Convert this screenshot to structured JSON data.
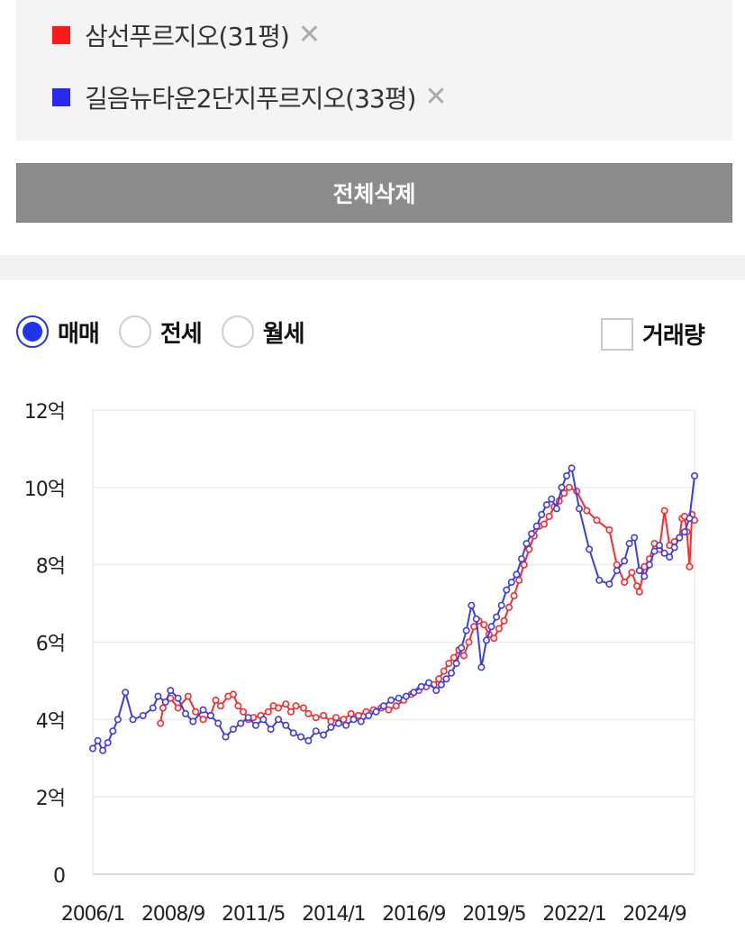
{
  "selection": {
    "items": [
      {
        "label": "삼선푸르지오(31평)",
        "color": "#ff1a1a"
      },
      {
        "label": "길음뉴타운2단지푸르지오(33평)",
        "color": "#2a2aee"
      }
    ],
    "remove_symbol": "✕",
    "delete_all_label": "전체삭제"
  },
  "controls": {
    "radios": [
      {
        "label": "매매",
        "checked": true
      },
      {
        "label": "전세",
        "checked": false
      },
      {
        "label": "월세",
        "checked": false
      }
    ],
    "volume_label": "거래량",
    "volume_checked": false
  },
  "chart_data": {
    "type": "line",
    "y_unit": "억",
    "ylim": [
      0,
      12
    ],
    "y_ticks": [
      {
        "value": 0,
        "label": "0"
      },
      {
        "value": 2,
        "label": "2억"
      },
      {
        "value": 4,
        "label": "4억"
      },
      {
        "value": 6,
        "label": "6억"
      },
      {
        "value": 8,
        "label": "8억"
      },
      {
        "value": 10,
        "label": "10억"
      },
      {
        "value": 12,
        "label": "12억"
      }
    ],
    "xlim": [
      "2006/1",
      "2026/1"
    ],
    "x_ticks": [
      "2006/1",
      "2008/9",
      "2011/5",
      "2014/1",
      "2016/9",
      "2019/5",
      "2022/1",
      "2024/9"
    ],
    "grid": true,
    "series": [
      {
        "name": "삼선푸르지오(31평)",
        "color": "#ff2a2a",
        "points": [
          [
            "2008/4",
            3.9
          ],
          [
            "2008/5",
            4.3
          ],
          [
            "2008/8",
            4.55
          ],
          [
            "2008/11",
            4.3
          ],
          [
            "2009/3",
            4.6
          ],
          [
            "2009/6",
            4.2
          ],
          [
            "2009/9",
            4.0
          ],
          [
            "2009/12",
            4.1
          ],
          [
            "2010/2",
            4.5
          ],
          [
            "2010/4",
            4.35
          ],
          [
            "2010/7",
            4.6
          ],
          [
            "2010/9",
            4.65
          ],
          [
            "2010/11",
            4.35
          ],
          [
            "2011/1",
            4.2
          ],
          [
            "2011/3",
            4.0
          ],
          [
            "2011/5",
            4.05
          ],
          [
            "2011/8",
            4.1
          ],
          [
            "2011/11",
            4.2
          ],
          [
            "2012/1",
            4.35
          ],
          [
            "2012/3",
            4.3
          ],
          [
            "2012/6",
            4.4
          ],
          [
            "2012/8",
            4.2
          ],
          [
            "2012/10",
            4.35
          ],
          [
            "2013/1",
            4.3
          ],
          [
            "2013/3",
            4.15
          ],
          [
            "2013/6",
            4.05
          ],
          [
            "2013/9",
            4.1
          ],
          [
            "2013/12",
            3.95
          ],
          [
            "2014/2",
            4.05
          ],
          [
            "2014/5",
            4.0
          ],
          [
            "2014/8",
            4.15
          ],
          [
            "2014/11",
            4.1
          ],
          [
            "2015/2",
            4.2
          ],
          [
            "2015/5",
            4.25
          ],
          [
            "2015/8",
            4.3
          ],
          [
            "2015/11",
            4.25
          ],
          [
            "2016/2",
            4.35
          ],
          [
            "2016/5",
            4.5
          ],
          [
            "2016/8",
            4.65
          ],
          [
            "2016/11",
            4.75
          ],
          [
            "2017/2",
            4.85
          ],
          [
            "2017/5",
            4.9
          ],
          [
            "2017/7",
            5.05
          ],
          [
            "2017/9",
            5.25
          ],
          [
            "2017/11",
            5.45
          ],
          [
            "2018/1",
            5.6
          ],
          [
            "2018/3",
            5.8
          ],
          [
            "2018/5",
            5.65
          ],
          [
            "2018/7",
            6.0
          ],
          [
            "2018/9",
            6.4
          ],
          [
            "2018/11",
            6.55
          ],
          [
            "2019/1",
            6.45
          ],
          [
            "2019/3",
            6.2
          ],
          [
            "2019/5",
            6.1
          ],
          [
            "2019/7",
            6.35
          ],
          [
            "2019/9",
            6.55
          ],
          [
            "2019/11",
            6.9
          ],
          [
            "2020/1",
            7.2
          ],
          [
            "2020/3",
            7.6
          ],
          [
            "2020/5",
            8.0
          ],
          [
            "2020/7",
            8.4
          ],
          [
            "2020/9",
            8.75
          ],
          [
            "2020/11",
            9.0
          ],
          [
            "2021/1",
            9.05
          ],
          [
            "2021/3",
            9.25
          ],
          [
            "2021/5",
            9.5
          ],
          [
            "2021/7",
            9.65
          ],
          [
            "2021/9",
            9.85
          ],
          [
            "2021/11",
            10.0
          ],
          [
            "2022/2",
            9.9
          ],
          [
            "2022/6",
            9.4
          ],
          [
            "2022/10",
            9.15
          ],
          [
            "2023/3",
            8.9
          ],
          [
            "2023/6",
            8.0
          ],
          [
            "2023/9",
            7.55
          ],
          [
            "2023/12",
            7.8
          ],
          [
            "2024/2",
            7.45
          ],
          [
            "2024/3",
            7.3
          ],
          [
            "2024/5",
            7.95
          ],
          [
            "2024/7",
            8.15
          ],
          [
            "2024/9",
            8.55
          ],
          [
            "2024/11",
            8.4
          ],
          [
            "2025/1",
            9.4
          ],
          [
            "2025/3",
            8.5
          ],
          [
            "2025/5",
            8.6
          ],
          [
            "2025/7",
            8.7
          ],
          [
            "2025/8",
            9.2
          ],
          [
            "2025/9",
            9.25
          ],
          [
            "2025/10",
            8.85
          ],
          [
            "2025/11",
            7.95
          ],
          [
            "2025/12",
            9.3
          ],
          [
            "2026/1",
            9.15
          ]
        ]
      },
      {
        "name": "길음뉴타운2단지푸르지오(33평)",
        "color": "#3d3de8",
        "points": [
          [
            "2006/1",
            3.25
          ],
          [
            "2006/3",
            3.45
          ],
          [
            "2006/5",
            3.2
          ],
          [
            "2006/7",
            3.4
          ],
          [
            "2006/9",
            3.7
          ],
          [
            "2006/11",
            4.0
          ],
          [
            "2007/2",
            4.7
          ],
          [
            "2007/5",
            4.0
          ],
          [
            "2007/9",
            4.1
          ],
          [
            "2008/1",
            4.3
          ],
          [
            "2008/3",
            4.6
          ],
          [
            "2008/6",
            4.45
          ],
          [
            "2008/8",
            4.75
          ],
          [
            "2008/11",
            4.55
          ],
          [
            "2009/2",
            4.15
          ],
          [
            "2009/5",
            3.95
          ],
          [
            "2009/9",
            4.25
          ],
          [
            "2009/12",
            4.1
          ],
          [
            "2010/3",
            3.9
          ],
          [
            "2010/6",
            3.55
          ],
          [
            "2010/9",
            3.75
          ],
          [
            "2010/12",
            3.9
          ],
          [
            "2011/3",
            4.05
          ],
          [
            "2011/6",
            3.85
          ],
          [
            "2011/9",
            4.0
          ],
          [
            "2011/12",
            3.75
          ],
          [
            "2012/3",
            4.0
          ],
          [
            "2012/6",
            3.85
          ],
          [
            "2012/9",
            3.65
          ],
          [
            "2012/12",
            3.55
          ],
          [
            "2013/3",
            3.45
          ],
          [
            "2013/6",
            3.7
          ],
          [
            "2013/9",
            3.6
          ],
          [
            "2013/12",
            3.8
          ],
          [
            "2014/3",
            3.9
          ],
          [
            "2014/6",
            3.85
          ],
          [
            "2014/9",
            4.0
          ],
          [
            "2014/12",
            3.95
          ],
          [
            "2015/3",
            4.1
          ],
          [
            "2015/6",
            4.2
          ],
          [
            "2015/9",
            4.35
          ],
          [
            "2015/12",
            4.5
          ],
          [
            "2016/3",
            4.55
          ],
          [
            "2016/6",
            4.6
          ],
          [
            "2016/9",
            4.7
          ],
          [
            "2016/12",
            4.85
          ],
          [
            "2017/3",
            4.95
          ],
          [
            "2017/6",
            4.75
          ],
          [
            "2017/8",
            4.9
          ],
          [
            "2017/10",
            5.05
          ],
          [
            "2017/12",
            5.2
          ],
          [
            "2018/2",
            5.45
          ],
          [
            "2018/4",
            5.85
          ],
          [
            "2018/6",
            6.3
          ],
          [
            "2018/8",
            6.95
          ],
          [
            "2018/10",
            6.6
          ],
          [
            "2018/12",
            5.35
          ],
          [
            "2019/2",
            6.05
          ],
          [
            "2019/4",
            6.4
          ],
          [
            "2019/6",
            6.65
          ],
          [
            "2019/8",
            6.95
          ],
          [
            "2019/10",
            7.35
          ],
          [
            "2019/12",
            7.55
          ],
          [
            "2020/2",
            7.75
          ],
          [
            "2020/4",
            8.15
          ],
          [
            "2020/6",
            8.55
          ],
          [
            "2020/8",
            8.8
          ],
          [
            "2020/10",
            9.0
          ],
          [
            "2020/12",
            9.3
          ],
          [
            "2021/2",
            9.55
          ],
          [
            "2021/4",
            9.7
          ],
          [
            "2021/6",
            9.45
          ],
          [
            "2021/8",
            10.0
          ],
          [
            "2021/10",
            10.3
          ],
          [
            "2021/12",
            10.5
          ],
          [
            "2022/3",
            9.45
          ],
          [
            "2022/7",
            8.4
          ],
          [
            "2022/11",
            7.6
          ],
          [
            "2023/3",
            7.5
          ],
          [
            "2023/6",
            7.85
          ],
          [
            "2023/9",
            8.1
          ],
          [
            "2023/11",
            8.55
          ],
          [
            "2024/1",
            8.7
          ],
          [
            "2024/3",
            7.85
          ],
          [
            "2024/5",
            7.7
          ],
          [
            "2024/7",
            8.0
          ],
          [
            "2024/9",
            8.35
          ],
          [
            "2024/11",
            8.5
          ],
          [
            "2025/1",
            8.3
          ],
          [
            "2025/3",
            8.2
          ],
          [
            "2025/5",
            8.45
          ],
          [
            "2025/7",
            8.7
          ],
          [
            "2025/9",
            8.85
          ],
          [
            "2025/11",
            9.2
          ],
          [
            "2026/1",
            10.3
          ]
        ]
      }
    ]
  }
}
